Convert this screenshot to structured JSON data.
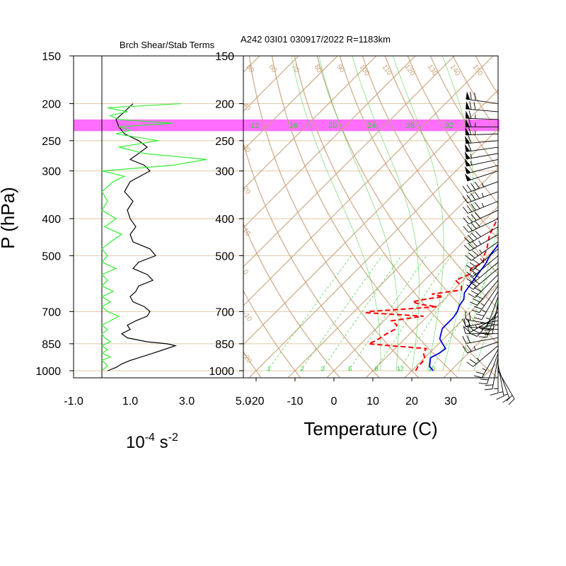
{
  "header": {
    "title": "A242 03I01 030917/2022 R=1183km",
    "left_title": "Brch Shear/Stab Terms"
  },
  "labels": {
    "ylabel": "P (hPa)",
    "xlabel_left_base": "10",
    "xlabel_left_exp": "-4",
    "xlabel_left_unit": " s",
    "xlabel_left_unit_exp": "-2",
    "xlabel_right": "Temperature (C)"
  },
  "colors": {
    "dry_adiabat": "#c8a27a",
    "moist_adiabat": "#33cc33",
    "mixing_ratio": "#33cc33",
    "isobar": "#e0c8a8",
    "highlight": "#ff55ff",
    "dewpoint": "#ff0000",
    "virtual_temp": "#0000dd",
    "shear_term": "#000000",
    "stability_term": "#33ee33",
    "wind_barb": "#000000"
  },
  "chart_data": [
    {
      "type": "line",
      "name": "branch-shear-stability-panel",
      "y_axis": {
        "label": "P (hPa)",
        "scale": "log",
        "range": [
          1050,
          150
        ],
        "ticks": [
          150,
          200,
          250,
          300,
          400,
          500,
          700,
          850,
          1000
        ]
      },
      "x_axis": {
        "range": [
          -1.0,
          5.0
        ],
        "ticks": [
          "-1.0",
          "1.0",
          "3.0",
          "5.0"
        ],
        "tick_values": [
          -1.0,
          1.0,
          3.0,
          5.0
        ]
      },
      "series": [
        {
          "key": "black",
          "p": [
            1000,
            980,
            960,
            940,
            920,
            900,
            880,
            860,
            850,
            840,
            820,
            800,
            780,
            760,
            740,
            720,
            700,
            680,
            660,
            640,
            620,
            600,
            580,
            560,
            540,
            520,
            500,
            480,
            460,
            440,
            420,
            400,
            380,
            360,
            340,
            320,
            300,
            290,
            280,
            270,
            260,
            250,
            240,
            230,
            220,
            210,
            200
          ],
          "v": [
            0.2,
            0.5,
            0.7,
            1.0,
            1.4,
            1.8,
            2.2,
            2.6,
            2.3,
            1.6,
            0.9,
            0.7,
            1.0,
            0.9,
            1.2,
            1.6,
            1.7,
            1.5,
            1.1,
            1.0,
            1.2,
            1.3,
            1.8,
            1.6,
            1.1,
            1.3,
            1.9,
            1.7,
            1.1,
            1.0,
            1.2,
            1.0,
            0.9,
            1.1,
            0.8,
            1.0,
            1.7,
            1.5,
            1.0,
            1.3,
            1.6,
            1.3,
            0.8,
            0.6,
            0.5,
            0.8,
            1.1
          ]
        },
        {
          "key": "green",
          "p": [
            1000,
            970,
            940,
            920,
            900,
            880,
            860,
            840,
            820,
            800,
            780,
            760,
            740,
            720,
            700,
            680,
            660,
            640,
            620,
            600,
            580,
            560,
            540,
            520,
            500,
            480,
            460,
            440,
            420,
            400,
            380,
            360,
            340,
            320,
            310,
            300,
            290,
            280,
            270,
            260,
            250,
            240,
            235,
            230,
            225,
            220,
            215,
            210,
            205,
            200
          ],
          "v": [
            0.0,
            0.2,
            0.0,
            0.3,
            0.0,
            0.2,
            0.0,
            0.3,
            0.1,
            0.0,
            0.2,
            0.0,
            0.3,
            0.6,
            0.2,
            0.0,
            0.3,
            0.0,
            0.4,
            0.0,
            0.2,
            0.0,
            0.5,
            0.0,
            0.2,
            0.0,
            0.3,
            0.7,
            0.1,
            0.5,
            0.0,
            0.2,
            0.0,
            0.4,
            0.8,
            0.0,
            2.5,
            3.7,
            1.5,
            0.6,
            2.0,
            0.5,
            1.0,
            0.6,
            2.5,
            0.6,
            0.3,
            0.9,
            0.2,
            2.8
          ]
        }
      ]
    },
    {
      "type": "line",
      "name": "skew-t-sounding",
      "y_axis": {
        "label": "P (hPa)",
        "scale": "log",
        "range": [
          1050,
          150
        ],
        "ticks": [
          150,
          200,
          250,
          300,
          400,
          500,
          700,
          850,
          1000
        ]
      },
      "x_axis": {
        "label": "Temperature (C)",
        "range": [
          -25,
          40
        ],
        "ticks": [
          -20,
          -10,
          0,
          10,
          20,
          30
        ]
      },
      "highlight_layer_hpa": [
        220,
        236
      ],
      "mixing_ratio_labels": [
        "1",
        "2",
        "3",
        "5",
        "8",
        "12",
        "20"
      ],
      "moist_adiabat_labels": [
        "12",
        "16",
        "20",
        "24",
        "28",
        "32"
      ],
      "dry_adiabat_top_labels": [
        "50",
        "60",
        "70",
        "80",
        "90",
        "100",
        "110",
        "120",
        "130",
        "140",
        "150"
      ],
      "dry_adiabat_left_labels": [
        "40",
        "30",
        "20",
        "10",
        "0",
        "-10",
        "-20",
        "-30"
      ],
      "series": [
        {
          "key": "temperature",
          "p": [
            1000,
            975,
            950,
            925,
            900,
            875,
            850,
            825,
            800,
            775,
            750,
            725,
            700,
            675,
            650,
            625,
            600,
            575,
            550,
            525,
            500,
            475,
            450,
            425,
            400,
            375,
            350,
            325,
            300,
            285,
            270,
            255,
            240,
            225,
            210,
            195
          ],
          "t": [
            25.5,
            23.5,
            22.5,
            21.5,
            22.5,
            23.0,
            21.0,
            19.0,
            18.0,
            17.0,
            17.0,
            17.0,
            16.5,
            15.5,
            15.0,
            13.5,
            13.0,
            12.5,
            12.0,
            11.5,
            10.5,
            10.0,
            9.0,
            8.0,
            7.0,
            5.5,
            4.5,
            3.5,
            2.5,
            2.5,
            2.0,
            1.0,
            0.0,
            -1.0,
            -1.5,
            -1.5
          ]
        },
        {
          "key": "dewpoint",
          "p": [
            1000,
            975,
            950,
            925,
            900,
            875,
            860,
            850,
            835,
            820,
            800,
            780,
            760,
            740,
            720,
            705,
            700,
            690,
            680,
            670,
            660,
            650,
            640,
            630,
            615,
            600,
            580,
            560,
            540,
            520,
            500,
            480,
            460,
            440,
            420,
            400,
            380,
            360,
            340,
            320,
            300,
            285,
            270,
            255,
            240,
            225,
            210
          ],
          "t": [
            21.0,
            20.5,
            20.5,
            20.0,
            18.5,
            18.0,
            8.0,
            2.0,
            3.0,
            3.5,
            4.0,
            5.0,
            4.5,
            2.0,
            9.0,
            -6.5,
            -6.5,
            2.0,
            10.0,
            5.0,
            2.5,
            5.0,
            9.0,
            5.5,
            12.0,
            11.0,
            8.0,
            10.0,
            9.0,
            10.5,
            9.0,
            8.0,
            6.5,
            5.0,
            4.0,
            3.0,
            2.0,
            0.5,
            0.0,
            -0.5,
            -1.0,
            -1.5,
            -2.0,
            -2.0,
            -2.5,
            -3.0,
            -3.5
          ]
        }
      ]
    }
  ],
  "wind_barbs": {
    "p": [
      1000,
      980,
      960,
      940,
      920,
      900,
      880,
      860,
      840,
      820,
      800,
      780,
      760,
      740,
      720,
      700,
      680,
      660,
      640,
      620,
      600,
      580,
      560,
      540,
      520,
      500,
      480,
      460,
      440,
      420,
      400,
      380,
      360,
      340,
      320,
      300,
      290,
      280,
      270,
      260,
      250,
      240,
      230,
      220,
      210,
      200
    ],
    "dir_deg": [
      150,
      160,
      170,
      180,
      190,
      200,
      210,
      230,
      250,
      260,
      270,
      275,
      280,
      260,
      240,
      220,
      200,
      190,
      200,
      210,
      215,
      220,
      225,
      230,
      230,
      230,
      230,
      235,
      240,
      240,
      245,
      245,
      248,
      250,
      250,
      252,
      255,
      258,
      260,
      262,
      265,
      268,
      270,
      272,
      275,
      278
    ],
    "speed_kt": [
      20,
      15,
      15,
      15,
      20,
      20,
      25,
      25,
      25,
      20,
      20,
      20,
      20,
      20,
      25,
      25,
      30,
      30,
      25,
      25,
      25,
      30,
      30,
      30,
      30,
      30,
      35,
      35,
      35,
      40,
      40,
      40,
      45,
      45,
      45,
      50,
      50,
      55,
      55,
      60,
      60,
      65,
      65,
      65,
      70,
      70
    ]
  }
}
